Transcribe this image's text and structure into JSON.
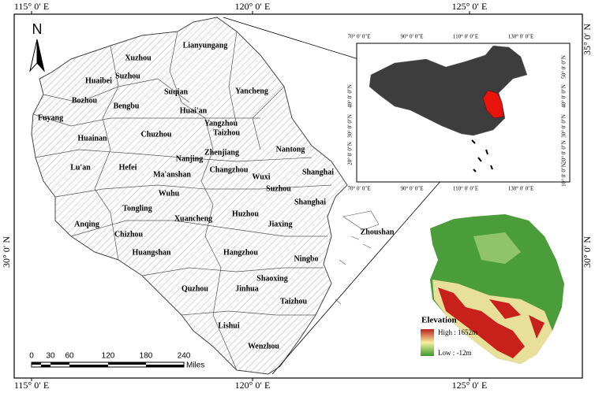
{
  "frame": {
    "top": [
      "115° 0′ E",
      "120° 0′ E",
      "125° 0′ E"
    ],
    "bottom": [
      "115° 0′ E",
      "120° 0′ E",
      "125° 0′ E"
    ],
    "left": [
      "30° 0′ N"
    ],
    "right": [
      "35° 0′ N",
      "30° 0′ N"
    ]
  },
  "north": "N",
  "scale_bar": {
    "ticks": [
      "0",
      "30",
      "60",
      "120",
      "180",
      "240"
    ],
    "unit": "Miles"
  },
  "cities": [
    "Xuzhou",
    "Lianyungang",
    "Suzhou",
    "Huaibei",
    "Suqian",
    "Yancheng",
    "Bozhou",
    "Bengbu",
    "Huai'an",
    "Fuyang",
    "Yangzhou",
    "Taizhou",
    "Chuzhou",
    "Huainan",
    "Nantong",
    "Zhenjiang",
    "Nanjing",
    "Lu'an",
    "Hefei",
    "Ma'anshan",
    "Changzhou",
    "Wuxi",
    "Shanghai",
    "Suzhou",
    "Wuhu",
    "Shanghai",
    "Tongling",
    "Xuancheng",
    "Huzhou",
    "Jiaxing",
    "Anqing",
    "Chizhou",
    "Zhoushan",
    "Huangshan",
    "Hangzhou",
    "Ningbo",
    "Shaoxing",
    "Quzhou",
    "Jinhua",
    "Taizhou",
    "Lishui",
    "Wenzhou"
  ],
  "inset": {
    "top": [
      "70° 0′ 0″E",
      "90° 0′ 0″E",
      "110° 0′ 0″E",
      "130° 0′ 0″E"
    ],
    "bottom": [
      "70° 0′ 0″E",
      "90° 0′ 0″E",
      "110° 0′ 0″E",
      "130° 0′ 0″E"
    ],
    "left": [
      "40° 0′ 0″N",
      "30° 0′ 0″N",
      "20° 0′ 0″N"
    ],
    "right": [
      "50° 0′ 0″N",
      "40° 0′ 0″N",
      "30° 0′ 0″N",
      "20° 0′ 0″N",
      "10° 0′ 0″N"
    ]
  },
  "elevation_legend": {
    "title": "Elevation",
    "high": "High : 1652m",
    "low": "Low : -12m"
  }
}
